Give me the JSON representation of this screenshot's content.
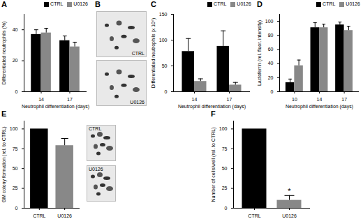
{
  "chart_data": [
    {
      "type": "bar",
      "title": "A",
      "categories": [
        "14",
        "17"
      ],
      "series": [
        {
          "name": "CTRL",
          "color": "#000000",
          "values": [
            37,
            33
          ],
          "errors": [
            3,
            3
          ]
        },
        {
          "name": "U0126",
          "color": "#888888",
          "values": [
            38,
            29
          ],
          "errors": [
            3,
            3
          ]
        }
      ],
      "xlabel": "Neutrophil differentiation (days)",
      "ylabel": "Differentiated neutrophils (%)",
      "ylim": [
        0,
        50
      ],
      "yticks": [
        0,
        20,
        40
      ],
      "legend": "top-right"
    },
    {
      "type": "image",
      "title": "B",
      "categories": [
        "CTRL",
        "U0126"
      ]
    },
    {
      "type": "bar",
      "title": "C",
      "categories": [
        "14",
        "17"
      ],
      "series": [
        {
          "name": "CTRL",
          "color": "#000000",
          "values": [
            78,
            88
          ],
          "errors": [
            25,
            30
          ]
        },
        {
          "name": "U0126",
          "color": "#888888",
          "values": [
            20,
            13
          ],
          "errors": [
            5,
            5
          ]
        }
      ],
      "xlabel": "Neutrophil differentiation (days)",
      "ylabel": "Differentiated neutrophils (x 10⁶)",
      "ylim": [
        0,
        150
      ],
      "yticks": [
        0,
        50,
        100,
        150
      ],
      "legend": "top-right"
    },
    {
      "type": "bar",
      "title": "D",
      "categories": [
        "10",
        "14",
        "17"
      ],
      "series": [
        {
          "name": "CTRL",
          "color": "#000000",
          "values": [
            13,
            91,
            95
          ],
          "errors": [
            5,
            7,
            4
          ]
        },
        {
          "name": "U0126",
          "color": "#888888",
          "values": [
            37,
            91,
            87
          ],
          "errors": [
            8,
            5,
            6
          ]
        }
      ],
      "xlabel": "Neutrophil differentiation (days)",
      "ylabel": "Lactoferrin (rel. fluor. intensity)",
      "ylim": [
        0,
        110
      ],
      "yticks": [
        0,
        20,
        40,
        60,
        80,
        100
      ],
      "legend": "top-right"
    },
    {
      "type": "bar",
      "title": "E",
      "categories": [
        "CTRL",
        "U0126"
      ],
      "values": [
        100,
        79
      ],
      "errors": [
        null,
        9
      ],
      "colors": [
        "#000000",
        "#888888"
      ],
      "ylabel": "GM colony formation (rel. to CTRL)",
      "ylim": [
        0,
        110
      ],
      "yticks": [
        0,
        25,
        50,
        75,
        100
      ],
      "images": [
        "CTRL",
        "U0126"
      ]
    },
    {
      "type": "bar",
      "title": "F",
      "categories": [
        "CTRL",
        "U0126"
      ],
      "values": [
        100,
        10
      ],
      "errors": [
        null,
        6
      ],
      "colors": [
        "#000000",
        "#888888"
      ],
      "ylabel": "Number of cells/well (rel. to CTRL)",
      "ylim": [
        0,
        110
      ],
      "yticks": [
        0,
        25,
        50,
        75,
        100
      ],
      "annotations": [
        {
          "category": "U0126",
          "text": "*"
        }
      ]
    }
  ]
}
